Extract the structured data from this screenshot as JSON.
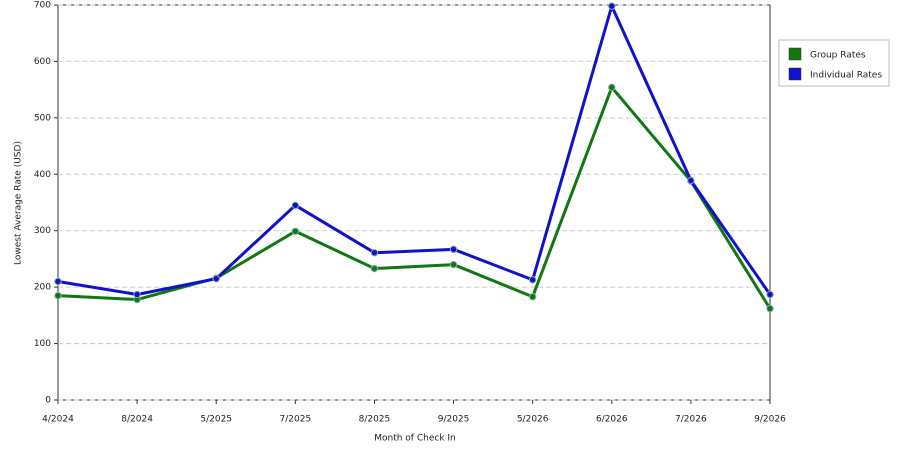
{
  "chart_data": {
    "type": "line",
    "x_label": "Month of Check In",
    "y_label": "Lowest Average Rate (USD)",
    "categories": [
      "4/2024",
      "8/2024",
      "5/2025",
      "7/2025",
      "8/2025",
      "9/2025",
      "5/2026",
      "6/2026",
      "7/2026",
      "9/2026"
    ],
    "series": [
      {
        "name": "Group Rates",
        "color": "#117711",
        "values": [
          185,
          178,
          216,
          299,
          233,
          240,
          183,
          554,
          388,
          162
        ]
      },
      {
        "name": "Individual Rates",
        "color": "#1111cc",
        "values": [
          210,
          187,
          215,
          345,
          261,
          267,
          213,
          698,
          389,
          187
        ]
      }
    ],
    "ylim": [
      0,
      700
    ],
    "yticks": [
      0,
      100,
      200,
      300,
      400,
      500,
      600,
      700
    ],
    "grid": true,
    "legend": "right"
  }
}
